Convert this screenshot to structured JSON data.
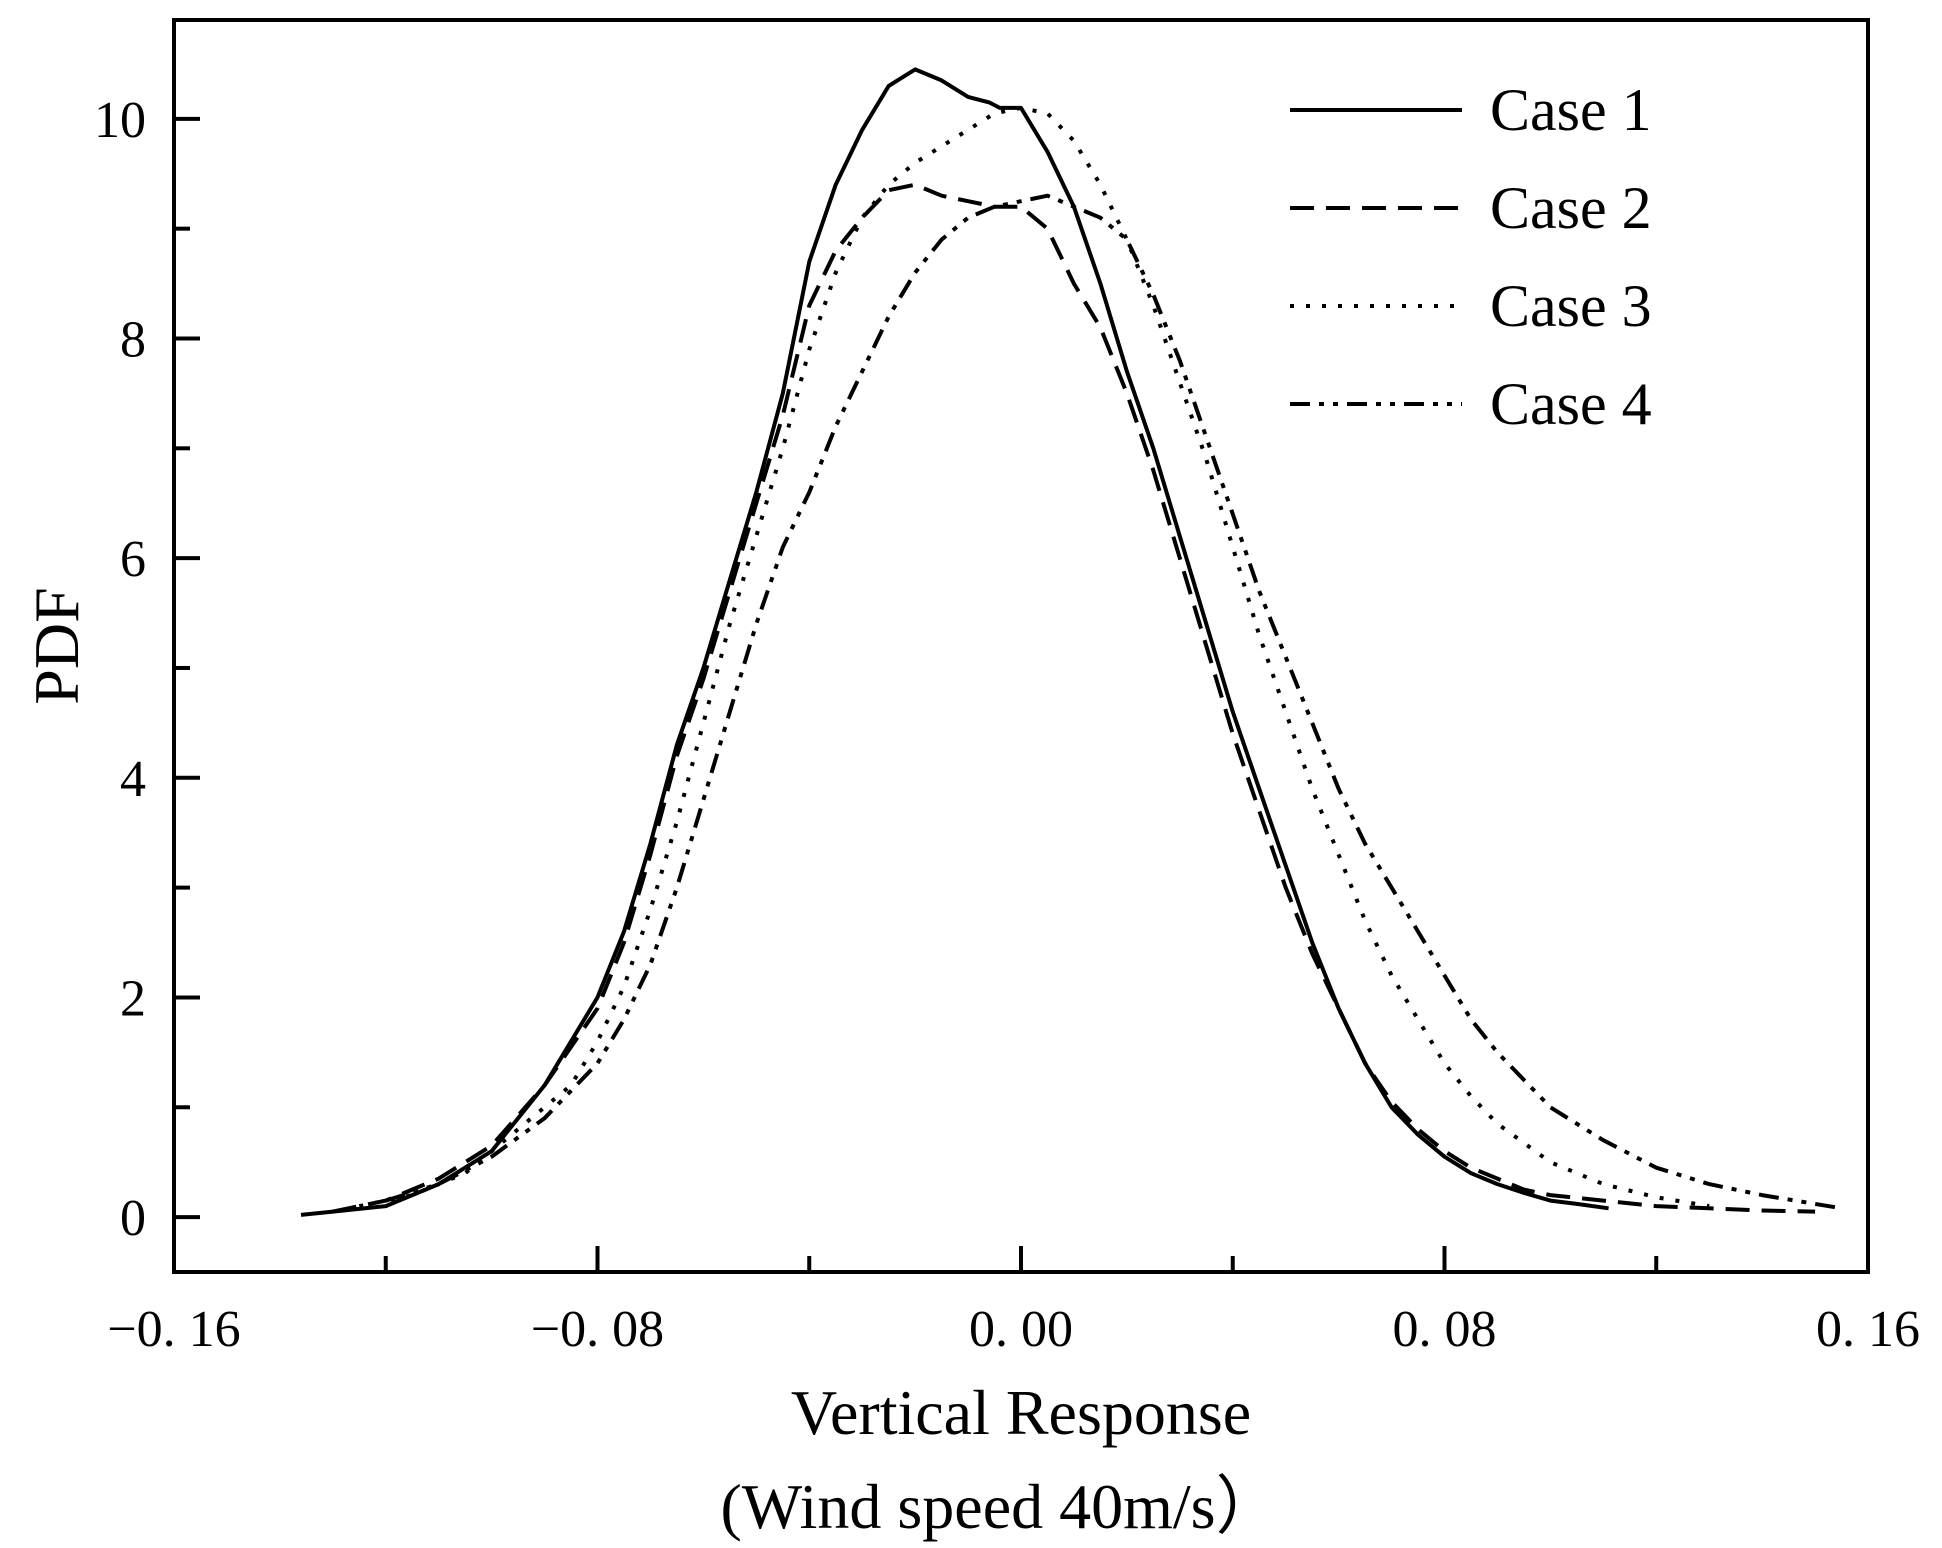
{
  "chart_data": {
    "type": "line",
    "title": "",
    "xlabel": "Vertical Response",
    "xlabel_sub": "(Wind speed 40m/s）",
    "ylabel": "PDF",
    "xlim": [
      -0.16,
      0.16
    ],
    "ylim": [
      -0.5,
      10.9
    ],
    "xticks": [
      -0.16,
      -0.08,
      0.0,
      0.08,
      0.16
    ],
    "xtick_labels": [
      "−0. 16",
      "−0. 08",
      "0. 00",
      "0. 08",
      "0. 16"
    ],
    "yticks": [
      0,
      2,
      4,
      6,
      8,
      10
    ],
    "ytick_labels": [
      "0",
      "2",
      "4",
      "6",
      "8",
      "10"
    ],
    "grid": false,
    "legend_position": "top-right",
    "colors": {
      "line": "#000000",
      "background": "#ffffff"
    },
    "series": [
      {
        "name": "Case 1",
        "style": "solid",
        "x": [
          -0.136,
          -0.13,
          -0.12,
          -0.11,
          -0.1,
          -0.09,
          -0.08,
          -0.075,
          -0.07,
          -0.065,
          -0.06,
          -0.055,
          -0.05,
          -0.045,
          -0.04,
          -0.035,
          -0.03,
          -0.025,
          -0.02,
          -0.015,
          -0.01,
          -0.006,
          -0.004,
          0.0,
          0.005,
          0.01,
          0.015,
          0.02,
          0.025,
          0.03,
          0.035,
          0.04,
          0.045,
          0.05,
          0.055,
          0.06,
          0.065,
          0.07,
          0.075,
          0.08,
          0.085,
          0.09,
          0.095,
          0.1,
          0.105,
          0.111
        ],
        "y": [
          0.02,
          0.05,
          0.1,
          0.3,
          0.6,
          1.2,
          2.0,
          2.6,
          3.4,
          4.3,
          5.0,
          5.8,
          6.6,
          7.5,
          8.7,
          9.4,
          9.9,
          10.3,
          10.45,
          10.35,
          10.2,
          10.15,
          10.1,
          10.1,
          9.7,
          9.2,
          8.5,
          7.7,
          7.0,
          6.2,
          5.4,
          4.6,
          3.9,
          3.2,
          2.5,
          1.9,
          1.4,
          1.0,
          0.75,
          0.55,
          0.4,
          0.3,
          0.22,
          0.15,
          0.12,
          0.08
        ]
      },
      {
        "name": "Case 2",
        "style": "dashed",
        "x": [
          -0.13,
          -0.12,
          -0.11,
          -0.1,
          -0.09,
          -0.08,
          -0.075,
          -0.07,
          -0.065,
          -0.06,
          -0.055,
          -0.05,
          -0.045,
          -0.04,
          -0.035,
          -0.03,
          -0.025,
          -0.02,
          -0.015,
          -0.01,
          -0.005,
          0.0,
          0.005,
          0.01,
          0.015,
          0.02,
          0.025,
          0.03,
          0.035,
          0.04,
          0.045,
          0.05,
          0.055,
          0.06,
          0.065,
          0.07,
          0.075,
          0.08,
          0.085,
          0.09,
          0.095,
          0.1,
          0.11,
          0.12,
          0.13,
          0.14,
          0.15
        ],
        "y": [
          0.05,
          0.15,
          0.35,
          0.65,
          1.2,
          1.9,
          2.5,
          3.3,
          4.2,
          4.9,
          5.7,
          6.5,
          7.3,
          8.3,
          8.8,
          9.1,
          9.35,
          9.4,
          9.3,
          9.25,
          9.2,
          9.2,
          9.0,
          8.5,
          8.1,
          7.5,
          6.8,
          6.0,
          5.2,
          4.4,
          3.7,
          3.0,
          2.4,
          1.9,
          1.4,
          1.05,
          0.8,
          0.6,
          0.45,
          0.35,
          0.25,
          0.2,
          0.15,
          0.1,
          0.08,
          0.06,
          0.05
        ]
      },
      {
        "name": "Case 3",
        "style": "dotted",
        "x": [
          -0.125,
          -0.115,
          -0.105,
          -0.095,
          -0.085,
          -0.08,
          -0.075,
          -0.07,
          -0.065,
          -0.06,
          -0.055,
          -0.05,
          -0.045,
          -0.04,
          -0.035,
          -0.03,
          -0.025,
          -0.02,
          -0.015,
          -0.01,
          -0.005,
          0.0,
          0.005,
          0.01,
          0.015,
          0.02,
          0.025,
          0.03,
          0.035,
          0.04,
          0.045,
          0.05,
          0.055,
          0.06,
          0.065,
          0.07,
          0.075,
          0.08,
          0.085,
          0.09,
          0.1,
          0.11,
          0.12,
          0.13
        ],
        "y": [
          0.1,
          0.2,
          0.4,
          0.8,
          1.2,
          1.6,
          2.1,
          2.8,
          3.6,
          4.5,
          5.4,
          6.2,
          7.0,
          7.9,
          8.6,
          9.1,
          9.4,
          9.6,
          9.75,
          9.9,
          10.05,
          10.1,
          10.05,
          9.8,
          9.4,
          8.9,
          8.3,
          7.6,
          6.9,
          6.1,
          5.3,
          4.6,
          3.9,
          3.3,
          2.7,
          2.2,
          1.8,
          1.4,
          1.1,
          0.85,
          0.5,
          0.3,
          0.18,
          0.1
        ]
      },
      {
        "name": "Case 4",
        "style": "dash-dot-dot",
        "x": [
          -0.12,
          -0.11,
          -0.1,
          -0.09,
          -0.08,
          -0.075,
          -0.07,
          -0.065,
          -0.06,
          -0.055,
          -0.05,
          -0.045,
          -0.04,
          -0.035,
          -0.03,
          -0.025,
          -0.02,
          -0.015,
          -0.01,
          -0.005,
          0.0,
          0.005,
          0.01,
          0.015,
          0.02,
          0.025,
          0.03,
          0.035,
          0.04,
          0.045,
          0.05,
          0.055,
          0.06,
          0.065,
          0.07,
          0.075,
          0.08,
          0.085,
          0.09,
          0.1,
          0.11,
          0.12,
          0.13,
          0.14,
          0.15,
          0.155
        ],
        "y": [
          0.15,
          0.3,
          0.55,
          0.9,
          1.4,
          1.8,
          2.3,
          3.0,
          3.8,
          4.6,
          5.4,
          6.1,
          6.6,
          7.2,
          7.7,
          8.2,
          8.6,
          8.9,
          9.1,
          9.2,
          9.25,
          9.3,
          9.2,
          9.1,
          8.9,
          8.4,
          7.8,
          7.1,
          6.4,
          5.7,
          5.1,
          4.5,
          3.9,
          3.4,
          3.0,
          2.6,
          2.2,
          1.8,
          1.5,
          1.0,
          0.7,
          0.45,
          0.3,
          0.2,
          0.12,
          0.08
        ]
      }
    ]
  }
}
